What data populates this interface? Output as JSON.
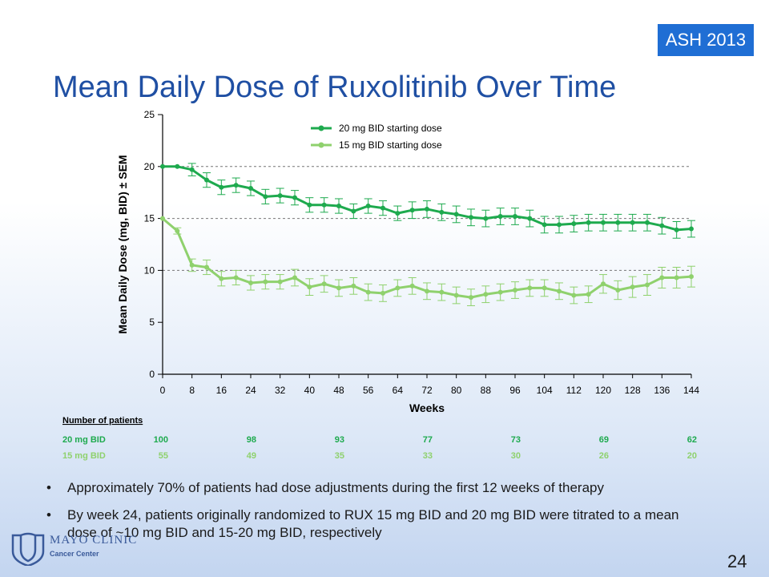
{
  "badge": "ASH 2013",
  "title": "Mean Daily Dose of Ruxolitinib Over Time",
  "chart_data": {
    "type": "line",
    "xlabel": "Weeks",
    "ylabel": "Mean Daily Dose (mg, BID) ± SEM",
    "xlim": [
      0,
      144
    ],
    "ylim": [
      0,
      25
    ],
    "x_ticks": [
      0,
      8,
      16,
      24,
      32,
      40,
      48,
      56,
      64,
      72,
      80,
      88,
      96,
      104,
      112,
      120,
      128,
      136,
      144
    ],
    "y_ticks": [
      0,
      5,
      10,
      15,
      20,
      25
    ],
    "reference_lines": [
      10,
      15,
      20
    ],
    "legend_position": "top",
    "series": [
      {
        "name": "20 mg BID starting dose",
        "color": "#1eaa4e",
        "x": [
          0,
          4,
          8,
          12,
          16,
          20,
          24,
          28,
          32,
          36,
          40,
          44,
          48,
          52,
          56,
          60,
          64,
          68,
          72,
          76,
          80,
          84,
          88,
          92,
          96,
          100,
          104,
          108,
          112,
          116,
          120,
          124,
          128,
          132,
          136,
          140,
          144
        ],
        "y": [
          20.0,
          20.0,
          19.7,
          18.7,
          18.0,
          18.2,
          17.9,
          17.1,
          17.2,
          17.0,
          16.3,
          16.3,
          16.2,
          15.7,
          16.2,
          16.0,
          15.5,
          15.8,
          15.9,
          15.6,
          15.4,
          15.1,
          15.0,
          15.2,
          15.2,
          15.0,
          14.4,
          14.4,
          14.5,
          14.6,
          14.6,
          14.6,
          14.6,
          14.6,
          14.3,
          13.9,
          14.0
        ],
        "sem": [
          0.0,
          0.0,
          0.6,
          0.7,
          0.7,
          0.7,
          0.7,
          0.7,
          0.7,
          0.7,
          0.7,
          0.7,
          0.7,
          0.7,
          0.7,
          0.7,
          0.7,
          0.8,
          0.8,
          0.8,
          0.8,
          0.8,
          0.8,
          0.8,
          0.8,
          0.8,
          0.8,
          0.8,
          0.8,
          0.8,
          0.8,
          0.8,
          0.8,
          0.8,
          0.8,
          0.8,
          0.8
        ]
      },
      {
        "name": "15 mg BID starting dose",
        "color": "#8fd16d",
        "x": [
          0,
          4,
          8,
          12,
          16,
          20,
          24,
          28,
          32,
          36,
          40,
          44,
          48,
          52,
          56,
          60,
          64,
          68,
          72,
          76,
          80,
          84,
          88,
          92,
          96,
          100,
          104,
          108,
          112,
          116,
          120,
          124,
          128,
          132,
          136,
          140,
          144
        ],
        "y": [
          15.0,
          13.8,
          10.5,
          10.3,
          9.2,
          9.3,
          8.8,
          8.9,
          8.9,
          9.3,
          8.4,
          8.7,
          8.3,
          8.5,
          7.9,
          7.8,
          8.3,
          8.5,
          8.0,
          7.9,
          7.6,
          7.4,
          7.7,
          7.9,
          8.1,
          8.3,
          8.3,
          8.0,
          7.6,
          7.7,
          8.7,
          8.1,
          8.4,
          8.6,
          9.3,
          9.3,
          9.4
        ],
        "sem": [
          0.0,
          0.3,
          0.6,
          0.7,
          0.7,
          0.7,
          0.7,
          0.7,
          0.7,
          0.8,
          0.8,
          0.8,
          0.8,
          0.8,
          0.8,
          0.8,
          0.8,
          0.8,
          0.8,
          0.8,
          0.8,
          0.8,
          0.8,
          0.8,
          0.8,
          0.8,
          0.8,
          0.8,
          0.8,
          0.8,
          0.9,
          0.9,
          1.0,
          1.0,
          1.0,
          1.0,
          1.0
        ]
      }
    ],
    "patients_table": {
      "header": "Number of patients",
      "weeks": [
        0,
        24,
        48,
        72,
        96,
        120,
        144
      ],
      "rows": [
        {
          "label": "20 mg BID",
          "values": [
            "100",
            "98",
            "93",
            "77",
            "73",
            "69",
            "62"
          ],
          "color": "#1eaa4e"
        },
        {
          "label": "15 mg BID",
          "values": [
            "55",
            "49",
            "35",
            "33",
            "30",
            "26",
            "20"
          ],
          "color": "#8fd16d"
        }
      ]
    }
  },
  "bullets": [
    "Approximately 70% of patients had dose adjustments during the first 12 weeks of therapy",
    "By week 24, patients originally randomized to RUX 15 mg BID and 20 mg BID were titrated to a mean dose of ~10 mg BID and 15-20 mg BID, respectively"
  ],
  "logo": {
    "name": "MAYO CLINIC",
    "sub": "Cancer Center"
  },
  "page_number": "24"
}
